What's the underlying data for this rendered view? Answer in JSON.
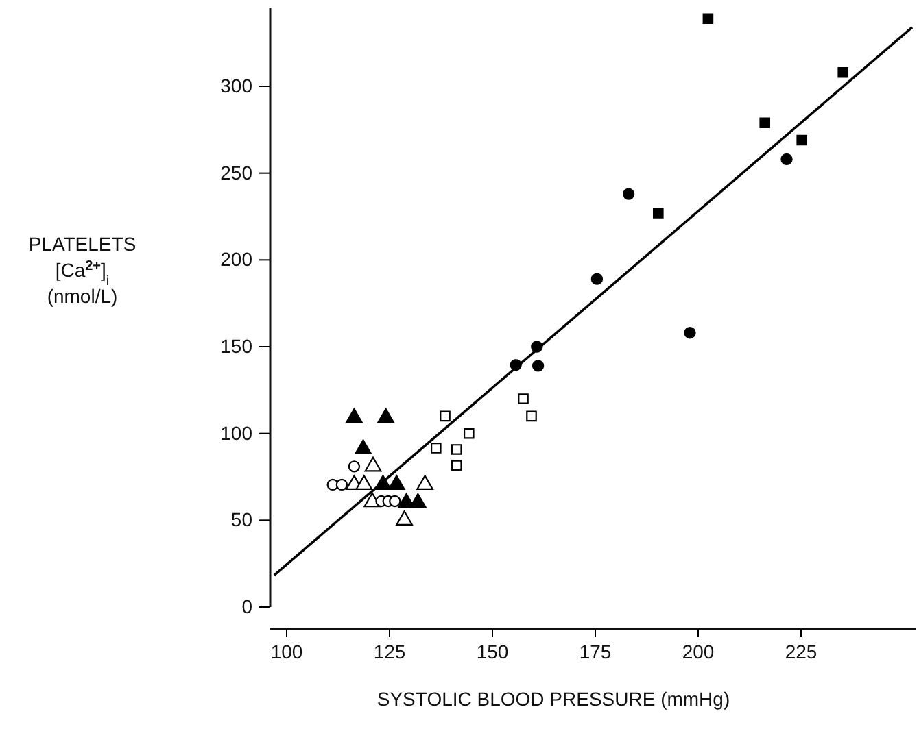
{
  "chart_data": {
    "type": "scatter",
    "xlabel": "SYSTOLIC BLOOD PRESSURE (mmHg)",
    "ylabel": "PLATELETS\n[Ca$^{2+}$]$_{i}$\n(nmol/L)",
    "xlim": [
      96,
      253
    ],
    "ylim": [
      0,
      345
    ],
    "xticks": [
      100,
      125,
      150,
      175,
      200,
      225
    ],
    "yticks": [
      0,
      50,
      100,
      150,
      200,
      250,
      300
    ],
    "grid": false,
    "series": [
      {
        "color": "#000000",
        "marker": "triangle",
        "x": [
          116.4,
          124.1,
          118.6,
          123.4,
          126.7,
          129.1,
          131.9
        ],
        "values": [
          109,
          109,
          91,
          70.5,
          70.5,
          60,
          60
        ]
      },
      {
        "color": "#ffffff",
        "marker": "triangle",
        "x": [
          121,
          116.4,
          118.8,
          120.8,
          128.6,
          133.6
        ],
        "values": [
          81,
          70.5,
          70.5,
          60.5,
          50,
          70.5
        ]
      },
      {
        "color": "#ffffff",
        "marker": "circle",
        "x": [
          111.2,
          113.4,
          116.4,
          123,
          124.7,
          126.3
        ],
        "values": [
          70.5,
          70.5,
          81,
          61,
          61,
          61
        ]
      },
      {
        "color": "#ffffff",
        "marker": "square",
        "x": [
          138.5,
          144.3,
          136.3,
          141.3,
          141.3,
          157.5,
          159.5
        ],
        "values": [
          110,
          100,
          91.6,
          90.8,
          81.6,
          120,
          110
        ]
      },
      {
        "color": "#000000",
        "marker": "circle",
        "x": [
          221.5,
          183.1,
          175.4,
          198,
          160.8,
          155.7,
          161.1
        ],
        "values": [
          258,
          238,
          189,
          158,
          150,
          139.5,
          139
        ]
      },
      {
        "color": "#000000",
        "marker": "square",
        "x": [
          202.4,
          235.2,
          216.2,
          225.2,
          190.3
        ],
        "values": [
          339,
          308,
          279,
          269,
          227
        ]
      },
      {
        "type": "line",
        "color": "#000000",
        "line_style": "solid",
        "x": [
          97,
          252
        ],
        "values": [
          18.4,
          334
        ]
      }
    ]
  }
}
